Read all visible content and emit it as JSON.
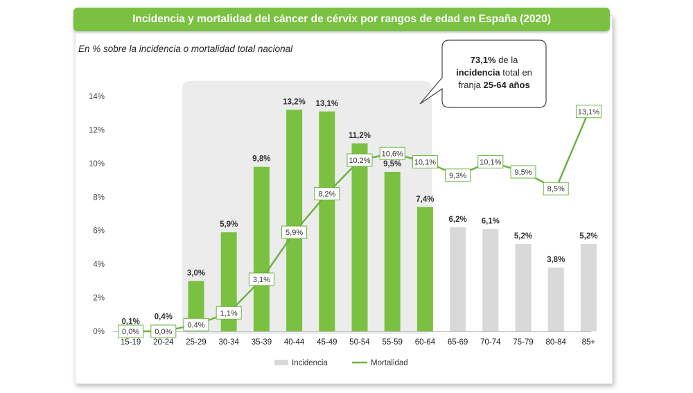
{
  "title": "Incidencia y mortalidad del cáncer de cérvix por rangos de edad en España (2020)",
  "subtitle": "En % sobre la incidencia o mortalidad total nacional",
  "callout": {
    "pct": "73,1%",
    "t1": " de la",
    "bold1": "incidencia",
    "t2": " total en",
    "t3": "franja ",
    "bold2": "25-64 años"
  },
  "chart_data": {
    "type": "bar",
    "categories": [
      "15-19",
      "20-24",
      "25-29",
      "30-34",
      "35-39",
      "40-44",
      "45-49",
      "50-54",
      "55-59",
      "60-64",
      "65-69",
      "70-74",
      "75-79",
      "80-84",
      "85+"
    ],
    "series": [
      {
        "name": "Incidencia",
        "type": "bar",
        "values": [
          0.1,
          0.4,
          3.0,
          5.9,
          9.8,
          13.2,
          13.1,
          11.2,
          9.5,
          7.4,
          6.2,
          6.1,
          5.2,
          3.8,
          5.2
        ],
        "labels": [
          "0,1%",
          "0,4%",
          "3,0%",
          "5,9%",
          "9,8%",
          "13,2%",
          "13,1%",
          "11,2%",
          "9,5%",
          "7,4%",
          "6,2%",
          "6,1%",
          "5,2%",
          "3,8%",
          "5,2%"
        ]
      },
      {
        "name": "Mortalidad",
        "type": "line",
        "values": [
          0.0,
          0.0,
          0.4,
          1.1,
          3.1,
          5.9,
          8.2,
          10.2,
          10.6,
          10.1,
          9.3,
          10.1,
          9.5,
          8.5,
          13.1
        ],
        "labels": [
          "0,0%",
          "0,0%",
          "0,4%",
          "1,1%",
          "3,1%",
          "5,9%",
          "8,2%",
          "10,2%",
          "10,6%",
          "10,1%",
          "9,3%",
          "10,1%",
          "9,5%",
          "8,5%",
          "13,1%"
        ]
      }
    ],
    "yticks": [
      "0%",
      "2%",
      "4%",
      "6%",
      "8%",
      "10%",
      "12%",
      "14%"
    ],
    "ylim": [
      0,
      14
    ],
    "highlight_range": [
      "25-29",
      "60-64"
    ],
    "colors": {
      "highlight_bar": "#7ac142",
      "other_bar": "#d9d9d9",
      "line": "#6cb33f",
      "shade": "#ececec"
    },
    "legend": [
      "Incidencia",
      "Mortalidad"
    ],
    "legend_position": "bottom"
  }
}
